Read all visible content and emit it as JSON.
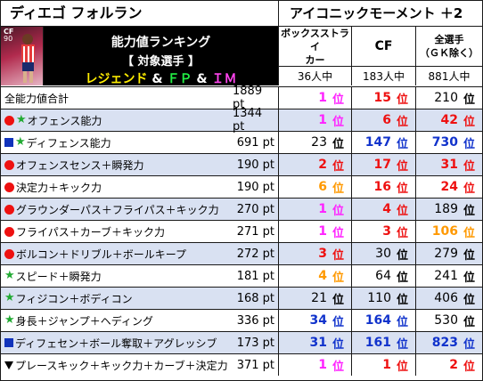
{
  "header": {
    "player_name": "ディエゴ フォルラン",
    "card_type": "アイコニックモーメント ＋2",
    "thumb": {
      "position": "CF",
      "rating": "90"
    },
    "ranking_title": "能力値ランキング",
    "target_label": "【 対象選手 】",
    "target_parts": {
      "legend": "レジェンド",
      "amp1": " & ",
      "fp": "ＦＰ",
      "amp2": " & ",
      "im": "ＩＭ"
    },
    "columns": [
      {
        "title_line1": "ボックスストライ",
        "title_line2": "カー",
        "count": "36人中"
      },
      {
        "title": "CF",
        "count": "183人中"
      },
      {
        "title_line1": "全選手",
        "title_line2": "（ＧＫ除く）",
        "count": "881人中"
      }
    ]
  },
  "colors": {
    "rank_top": "#ff22ff",
    "rank_red": "#ee1111",
    "rank_orange": "#ff9900",
    "rank_blue": "#1133cc",
    "row_alt": "#d9e1f2"
  },
  "rows": [
    {
      "marks": [],
      "name": "全能力値合計",
      "value": "1889 pt",
      "ranks": [
        {
          "n": "1",
          "c": "top"
        },
        {
          "n": "15",
          "c": "red"
        },
        {
          "n": "210",
          "c": "black"
        }
      ]
    },
    {
      "marks": [
        "dot",
        "star"
      ],
      "name": "オフェンス能力",
      "value": "1344 pt",
      "ranks": [
        {
          "n": "1",
          "c": "top"
        },
        {
          "n": "6",
          "c": "red"
        },
        {
          "n": "42",
          "c": "red"
        }
      ]
    },
    {
      "marks": [
        "sq",
        "star"
      ],
      "name": "ディフェンス能力",
      "value": "691 pt",
      "ranks": [
        {
          "n": "23",
          "c": "black"
        },
        {
          "n": "147",
          "c": "blue"
        },
        {
          "n": "730",
          "c": "blue"
        }
      ]
    },
    {
      "marks": [
        "dot"
      ],
      "name": "オフェンスセンス＋瞬発力",
      "value": "190 pt",
      "ranks": [
        {
          "n": "2",
          "c": "red"
        },
        {
          "n": "17",
          "c": "red"
        },
        {
          "n": "31",
          "c": "red"
        }
      ]
    },
    {
      "marks": [
        "dot"
      ],
      "name": "決定力＋キック力",
      "value": "190 pt",
      "ranks": [
        {
          "n": "6",
          "c": "orange"
        },
        {
          "n": "16",
          "c": "red"
        },
        {
          "n": "24",
          "c": "red"
        }
      ]
    },
    {
      "marks": [
        "dot"
      ],
      "name": "グラウンダーパス＋フライパス＋キック力",
      "value": "270 pt",
      "ranks": [
        {
          "n": "1",
          "c": "top"
        },
        {
          "n": "4",
          "c": "red"
        },
        {
          "n": "189",
          "c": "black"
        }
      ]
    },
    {
      "marks": [
        "dot"
      ],
      "name": "フライパス＋カーブ＋キック力",
      "value": "271 pt",
      "ranks": [
        {
          "n": "1",
          "c": "top"
        },
        {
          "n": "3",
          "c": "red"
        },
        {
          "n": "106",
          "c": "orange"
        }
      ]
    },
    {
      "marks": [
        "dot"
      ],
      "name": "ボルコン＋ドリブル＋ボールキープ",
      "value": "272 pt",
      "ranks": [
        {
          "n": "3",
          "c": "red"
        },
        {
          "n": "30",
          "c": "black"
        },
        {
          "n": "279",
          "c": "black"
        }
      ]
    },
    {
      "marks": [
        "star"
      ],
      "name": "スピード＋瞬発力",
      "value": "181 pt",
      "ranks": [
        {
          "n": "4",
          "c": "orange"
        },
        {
          "n": "64",
          "c": "black"
        },
        {
          "n": "241",
          "c": "black"
        }
      ]
    },
    {
      "marks": [
        "star"
      ],
      "name": "フィジコン＋ボディコン",
      "value": "168 pt",
      "ranks": [
        {
          "n": "21",
          "c": "black"
        },
        {
          "n": "110",
          "c": "black"
        },
        {
          "n": "406",
          "c": "black"
        }
      ]
    },
    {
      "marks": [
        "star"
      ],
      "name": "身長＋ジャンプ＋ヘディング",
      "value": "336 pt",
      "ranks": [
        {
          "n": "34",
          "c": "blue"
        },
        {
          "n": "164",
          "c": "blue"
        },
        {
          "n": "530",
          "c": "black"
        }
      ]
    },
    {
      "marks": [
        "sq"
      ],
      "name": "ディフェセン＋ボール奪取＋アグレッシブ",
      "value": "173 pt",
      "ranks": [
        {
          "n": "31",
          "c": "blue"
        },
        {
          "n": "161",
          "c": "blue"
        },
        {
          "n": "823",
          "c": "blue"
        }
      ]
    },
    {
      "marks": [
        "tri"
      ],
      "name": "プレースキック＋キック力＋カーブ＋決定力",
      "value": "371 pt",
      "ranks": [
        {
          "n": "1",
          "c": "top"
        },
        {
          "n": "1",
          "c": "red"
        },
        {
          "n": "2",
          "c": "red"
        }
      ]
    }
  ],
  "rank_suffix": "位"
}
